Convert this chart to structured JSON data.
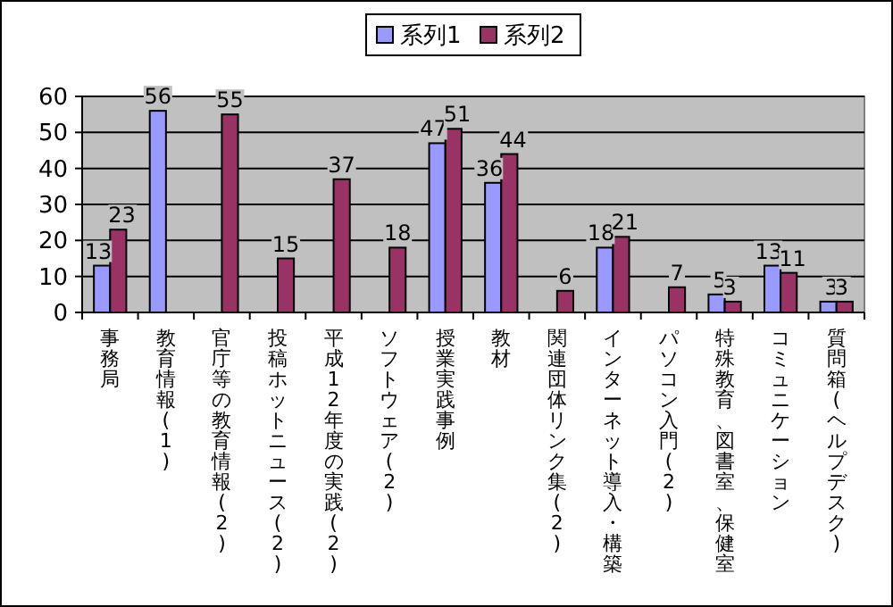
{
  "chart_data": {
    "type": "bar",
    "categories": [
      "事務局",
      "教育情報(1)",
      "官庁等の教育情報(2)",
      "投稿ホットニュース(2)",
      "平成12年度の実践(2)",
      "ソフトウェア(2)",
      "授業実践事例",
      "教材",
      "関連団体リンク集(2)",
      "インターネット導入・構築",
      "パソコン入門(2)",
      "特殊教育、図書室、保健室",
      "コミュニケーション",
      "質問箱(ヘルプデスク)"
    ],
    "series": [
      {
        "name": "系列1",
        "color": "#9999ff",
        "values": [
          13,
          56,
          null,
          null,
          null,
          null,
          47,
          36,
          null,
          18,
          null,
          5,
          13,
          3
        ]
      },
      {
        "name": "系列2",
        "color": "#993366",
        "values": [
          23,
          null,
          55,
          15,
          37,
          18,
          51,
          44,
          6,
          21,
          7,
          3,
          11,
          3
        ]
      }
    ],
    "ylim": [
      0,
      60
    ],
    "yticks": [
      0,
      10,
      20,
      30,
      40,
      50,
      60
    ],
    "grid": "y",
    "legend": "top",
    "data_labels": true
  }
}
